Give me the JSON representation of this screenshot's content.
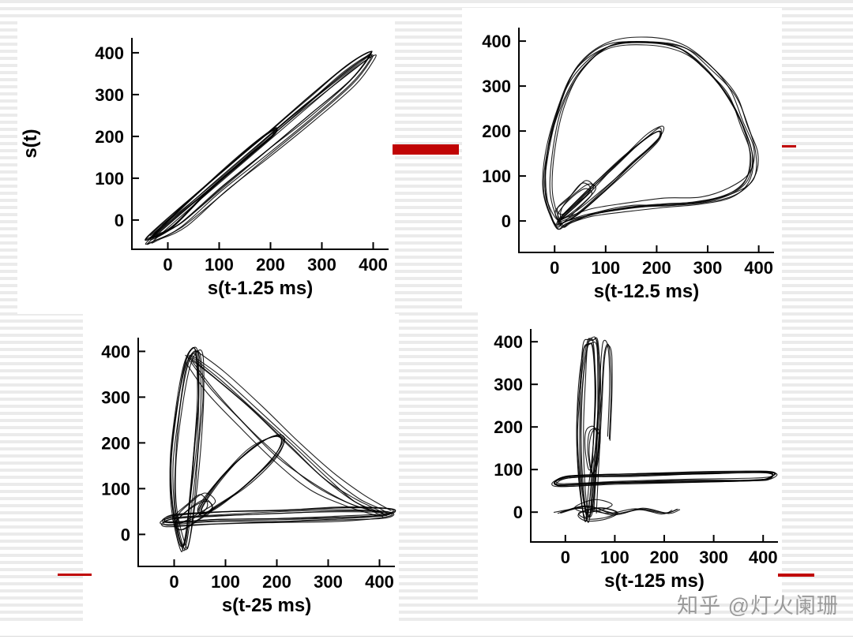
{
  "colors": {
    "accent_red": "#c00404",
    "ink": "#000000",
    "stripe_gray": "#ebebeb",
    "watermark_gray": "#9a9a9a"
  },
  "watermark": {
    "text": "知乎 @灯火阑珊"
  },
  "chart_data": [
    {
      "id": "tl",
      "type": "line",
      "title": "",
      "delay_ms": 1.25,
      "xlabel": "s(t-1.25 ms)",
      "ylabel": "s(t)",
      "x_ticks": [
        0,
        100,
        200,
        300,
        400
      ],
      "y_ticks": [
        0,
        100,
        200,
        300,
        400
      ],
      "xlim": [
        -70,
        430
      ],
      "ylim": [
        -70,
        430
      ],
      "curves": [
        {
          "pts": [
            [
              -35,
              -45
            ],
            [
              30,
              25
            ],
            [
              110,
              110
            ],
            [
              200,
              205
            ],
            [
              280,
              290
            ],
            [
              350,
              362
            ],
            [
              395,
              398
            ],
            [
              398,
              388
            ],
            [
              360,
              330
            ],
            [
              280,
              245
            ],
            [
              195,
              160
            ],
            [
              110,
              75
            ],
            [
              30,
              -10
            ],
            [
              -20,
              -42
            ]
          ],
          "closed": true,
          "reps": 6,
          "jit": 4
        },
        {
          "pts": [
            [
              -30,
              -40
            ],
            [
              40,
              45
            ],
            [
              110,
              120
            ],
            [
              175,
              190
            ],
            [
              210,
              218
            ],
            [
              203,
              200
            ],
            [
              150,
              145
            ],
            [
              80,
              70
            ],
            [
              10,
              -15
            ]
          ],
          "closed": true,
          "reps": 5,
          "jit": 3
        },
        {
          "pts": [
            [
              -32,
              -43
            ],
            [
              100,
              92
            ],
            [
              250,
              252
            ],
            [
              396,
              394
            ]
          ],
          "closed": false,
          "reps": 3,
          "jit": 3
        }
      ]
    },
    {
      "id": "tr",
      "type": "line",
      "title": "",
      "delay_ms": 12.5,
      "xlabel": "s(t-12.5 ms)",
      "ylabel": "",
      "x_ticks": [
        0,
        100,
        200,
        300,
        400
      ],
      "y_ticks": [
        0,
        100,
        200,
        300,
        400
      ],
      "xlim": [
        -70,
        430
      ],
      "ylim": [
        -70,
        430
      ],
      "curves": [
        {
          "pts": [
            [
              5,
              -8
            ],
            [
              -15,
              60
            ],
            [
              -12,
              150
            ],
            [
              10,
              250
            ],
            [
              45,
              335
            ],
            [
              105,
              390
            ],
            [
              180,
              400
            ],
            [
              250,
              384
            ],
            [
              305,
              338
            ],
            [
              345,
              280
            ],
            [
              372,
              215
            ],
            [
              390,
              150
            ],
            [
              382,
              95
            ],
            [
              345,
              62
            ],
            [
              285,
              45
            ],
            [
              215,
              38
            ],
            [
              145,
              32
            ],
            [
              75,
              18
            ],
            [
              28,
              0
            ]
          ],
          "closed": true,
          "reps": 7,
          "jit": 6
        },
        {
          "pts": [
            [
              5,
              0
            ],
            [
              60,
              65
            ],
            [
              120,
              130
            ],
            [
              175,
              185
            ],
            [
              205,
              205
            ],
            [
              198,
              182
            ],
            [
              150,
              128
            ],
            [
              95,
              70
            ],
            [
              40,
              18
            ]
          ],
          "closed": true,
          "reps": 5,
          "jit": 5
        },
        {
          "pts": [
            [
              10,
              10
            ],
            [
              45,
              40
            ],
            [
              70,
              70
            ],
            [
              55,
              85
            ],
            [
              25,
              55
            ],
            [
              3,
              25
            ]
          ],
          "closed": true,
          "reps": 4,
          "jit": 7
        }
      ]
    },
    {
      "id": "bl",
      "type": "line",
      "title": "",
      "delay_ms": 25,
      "xlabel": "s(t-25 ms)",
      "ylabel": "",
      "x_ticks": [
        0,
        100,
        200,
        300,
        400
      ],
      "y_ticks": [
        0,
        100,
        200,
        300,
        400
      ],
      "xlim": [
        -70,
        430
      ],
      "ylim": [
        -70,
        430
      ],
      "curves": [
        {
          "pts": [
            [
              15,
              -25
            ],
            [
              0,
              60
            ],
            [
              -2,
              160
            ],
            [
              8,
              270
            ],
            [
              22,
              360
            ],
            [
              35,
              398
            ],
            [
              48,
              392
            ],
            [
              52,
              300
            ],
            [
              45,
              190
            ],
            [
              35,
              80
            ],
            [
              25,
              -15
            ]
          ],
          "closed": true,
          "reps": 7,
          "jit": 4
        },
        {
          "pts": [
            [
              32,
              396
            ],
            [
              90,
              345
            ],
            [
              160,
              275
            ],
            [
              230,
              200
            ],
            [
              300,
              130
            ],
            [
              355,
              80
            ],
            [
              400,
              55
            ],
            [
              415,
              45
            ]
          ],
          "closed": false,
          "reps": 5,
          "jit": 7
        },
        {
          "pts": [
            [
              25,
              380
            ],
            [
              70,
              310
            ],
            [
              130,
              235
            ],
            [
              200,
              160
            ],
            [
              270,
              100
            ],
            [
              340,
              60
            ],
            [
              400,
              42
            ]
          ],
          "closed": false,
          "reps": 3,
          "jit": 5
        },
        {
          "pts": [
            [
              55,
              55
            ],
            [
              95,
              120
            ],
            [
              150,
              180
            ],
            [
              195,
              210
            ],
            [
              215,
              203
            ],
            [
              195,
              160
            ],
            [
              140,
              100
            ],
            [
              85,
              55
            ],
            [
              60,
              40
            ]
          ],
          "closed": true,
          "reps": 5,
          "jit": 5
        },
        {
          "pts": [
            [
              -15,
              22
            ],
            [
              80,
              28
            ],
            [
              200,
              30
            ],
            [
              320,
              34
            ],
            [
              410,
              40
            ],
            [
              420,
              52
            ],
            [
              330,
              55
            ],
            [
              210,
              50
            ],
            [
              90,
              45
            ],
            [
              -5,
              38
            ]
          ],
          "closed": true,
          "reps": 6,
          "jit": 3
        },
        {
          "pts": [
            [
              15,
              15
            ],
            [
              50,
              35
            ],
            [
              75,
              60
            ],
            [
              60,
              80
            ],
            [
              30,
              60
            ],
            [
              3,
              28
            ]
          ],
          "closed": true,
          "reps": 4,
          "jit": 7
        }
      ]
    },
    {
      "id": "br",
      "type": "line",
      "title": "",
      "delay_ms": 125,
      "xlabel": "s(t-125 ms)",
      "ylabel": "",
      "x_ticks": [
        0,
        100,
        200,
        300,
        400
      ],
      "y_ticks": [
        0,
        100,
        200,
        300,
        400
      ],
      "xlim": [
        -70,
        430
      ],
      "ylim": [
        -70,
        430
      ],
      "curves": [
        {
          "pts": [
            [
              42,
              -10
            ],
            [
              32,
              80
            ],
            [
              30,
              190
            ],
            [
              34,
              300
            ],
            [
              42,
              385
            ],
            [
              52,
              398
            ],
            [
              62,
              390
            ],
            [
              66,
              290
            ],
            [
              62,
              170
            ],
            [
              56,
              60
            ],
            [
              50,
              -8
            ]
          ],
          "closed": true,
          "reps": 7,
          "jit": 5
        },
        {
          "pts": [
            [
              58,
              0
            ],
            [
              64,
              120
            ],
            [
              70,
              250
            ],
            [
              76,
              360
            ],
            [
              82,
              396
            ],
            [
              90,
              378
            ],
            [
              92,
              290
            ],
            [
              88,
              170
            ]
          ],
          "closed": false,
          "reps": 3,
          "jit": 4
        },
        {
          "pts": [
            [
              -15,
              62
            ],
            [
              100,
              68
            ],
            [
              240,
              72
            ],
            [
              380,
              74
            ],
            [
              415,
              80
            ],
            [
              408,
              92
            ],
            [
              280,
              90
            ],
            [
              140,
              86
            ],
            [
              5,
              82
            ]
          ],
          "closed": true,
          "reps": 7,
          "jit": 4
        },
        {
          "pts": [
            [
              48,
              100
            ],
            [
              42,
              150
            ],
            [
              46,
              190
            ],
            [
              58,
              200
            ],
            [
              66,
              180
            ],
            [
              62,
              135
            ],
            [
              55,
              100
            ]
          ],
          "closed": true,
          "reps": 3,
          "jit": 4
        },
        {
          "pts": [
            [
              -15,
              -5
            ],
            [
              40,
              8
            ],
            [
              95,
              -8
            ],
            [
              150,
              5
            ],
            [
              200,
              -6
            ],
            [
              225,
              3
            ]
          ],
          "closed": false,
          "reps": 4,
          "jit": 5
        },
        {
          "pts": [
            [
              20,
              5
            ],
            [
              60,
              20
            ],
            [
              95,
              10
            ],
            [
              70,
              -5
            ],
            [
              35,
              -8
            ]
          ],
          "closed": true,
          "reps": 3,
          "jit": 6
        }
      ]
    }
  ]
}
